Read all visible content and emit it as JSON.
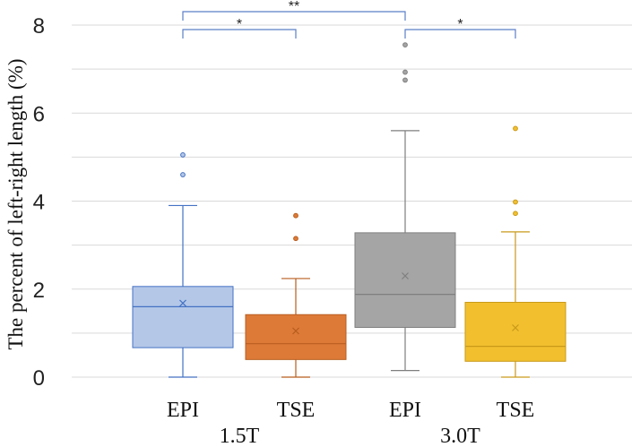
{
  "chart_data": {
    "type": "box",
    "title": "",
    "ylabel": "The percent of left-right length (%)",
    "ylim": [
      0,
      8
    ],
    "yticks": [
      "0",
      "2",
      "4",
      "6",
      "8"
    ],
    "grid": true,
    "groups": [
      {
        "label": "1.5T",
        "members": [
          "EPI",
          "TSE"
        ]
      },
      {
        "label": "3.0T",
        "members": [
          "EPI",
          "TSE"
        ]
      }
    ],
    "series": [
      {
        "name": "EPI",
        "group": "1.5T",
        "color": "#b4c7e7",
        "stroke": "#4472c4",
        "min": 0,
        "q1": 0.67,
        "median": 1.6,
        "q3": 2.06,
        "max": 3.9,
        "mean": 1.68,
        "outliers": [
          4.6,
          5.05
        ]
      },
      {
        "name": "TSE",
        "group": "1.5T",
        "color": "#dd7a38",
        "stroke": "#b85e1f",
        "min": 0,
        "q1": 0.4,
        "median": 0.76,
        "q3": 1.42,
        "max": 2.24,
        "mean": 1.05,
        "outliers": [
          3.15,
          3.67
        ]
      },
      {
        "name": "EPI",
        "group": "3.0T",
        "color": "#a5a5a5",
        "stroke": "#7f7f7f",
        "min": 0.15,
        "q1": 1.13,
        "median": 1.88,
        "q3": 3.28,
        "max": 5.6,
        "mean": 2.3,
        "outliers": [
          6.75,
          6.93,
          7.55
        ]
      },
      {
        "name": "TSE",
        "group": "3.0T",
        "color": "#f2c02f",
        "stroke": "#c99a1a",
        "min": 0,
        "q1": 0.36,
        "median": 0.7,
        "q3": 1.7,
        "max": 3.3,
        "mean": 1.12,
        "outliers": [
          3.72,
          3.98,
          5.65
        ]
      }
    ],
    "significance": [
      {
        "from": 0,
        "to": 2,
        "label": "**"
      },
      {
        "from": 0,
        "to": 1,
        "label": "*"
      },
      {
        "from": 2,
        "to": 3,
        "label": "*"
      }
    ]
  }
}
